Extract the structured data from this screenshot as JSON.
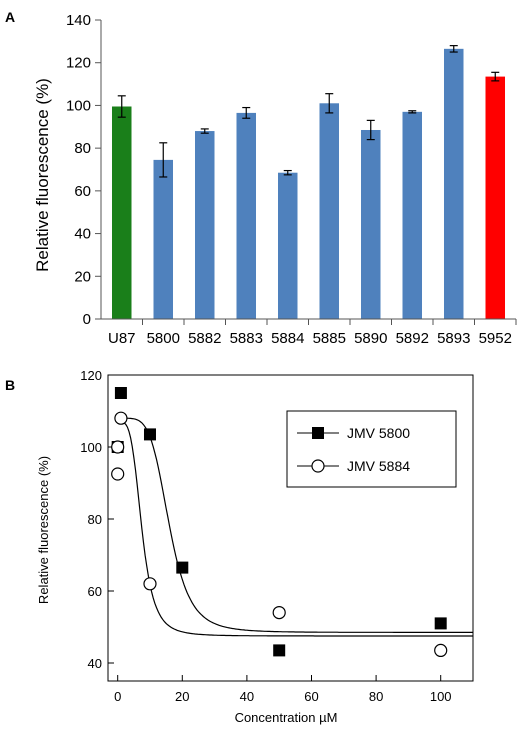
{
  "panels": [
    {
      "label": "A",
      "ylabel": "Relative fluorescence (%)"
    },
    {
      "label": "B",
      "ylabel": "Relative fluorescence  (%)",
      "xlabel": "Concentration µM"
    }
  ],
  "chart_data": [
    {
      "type": "bar",
      "title": "",
      "xlabel": "",
      "ylabel": "Relative fluorescence (%)",
      "ylim": [
        0,
        140
      ],
      "yticks": [
        0,
        20,
        40,
        60,
        80,
        100,
        120,
        140
      ],
      "categories": [
        "U87",
        "5800",
        "5882",
        "5883",
        "5884",
        "5885",
        "5890",
        "5892",
        "5893",
        "5952"
      ],
      "values": [
        99.5,
        74.5,
        88.0,
        96.5,
        68.5,
        101.0,
        88.5,
        97.0,
        126.5,
        113.5
      ],
      "errors": [
        5.0,
        8.0,
        1.0,
        2.5,
        1.0,
        4.5,
        4.5,
        0.5,
        1.5,
        2.0
      ],
      "colors": [
        "#1a7f1a",
        "#4f81bd",
        "#4f81bd",
        "#4f81bd",
        "#4f81bd",
        "#4f81bd",
        "#4f81bd",
        "#4f81bd",
        "#4f81bd",
        "#ff0000"
      ],
      "grid": false
    },
    {
      "type": "scatter",
      "title": "",
      "xlabel": "Concentration µM",
      "ylabel": "Relative fluorescence  (%)",
      "xlim": [
        -3,
        110
      ],
      "ylim": [
        35,
        120
      ],
      "xticks": [
        0,
        20,
        40,
        60,
        80,
        100
      ],
      "yticks": [
        40,
        60,
        80,
        100,
        120
      ],
      "legend_position": "top-right",
      "grid": false,
      "series": [
        {
          "name": "JMV 5800",
          "marker": "filled-square",
          "color": "#000000",
          "x": [
            0,
            1,
            10,
            20,
            50,
            100
          ],
          "y": [
            100,
            115,
            103.5,
            66.5,
            43.5,
            51
          ],
          "fit": {
            "bottom": 48.5,
            "top": 108,
            "ec50": 16,
            "hill": 5
          }
        },
        {
          "name": "JMV 5884",
          "marker": "open-circle",
          "color": "#000000",
          "x": [
            0,
            0,
            1,
            10,
            50,
            100
          ],
          "y": [
            92.5,
            100,
            108,
            62,
            54,
            43.5
          ],
          "fit": {
            "bottom": 47.5,
            "top": 107,
            "ec50": 7.5,
            "hill": 4
          }
        }
      ]
    }
  ]
}
